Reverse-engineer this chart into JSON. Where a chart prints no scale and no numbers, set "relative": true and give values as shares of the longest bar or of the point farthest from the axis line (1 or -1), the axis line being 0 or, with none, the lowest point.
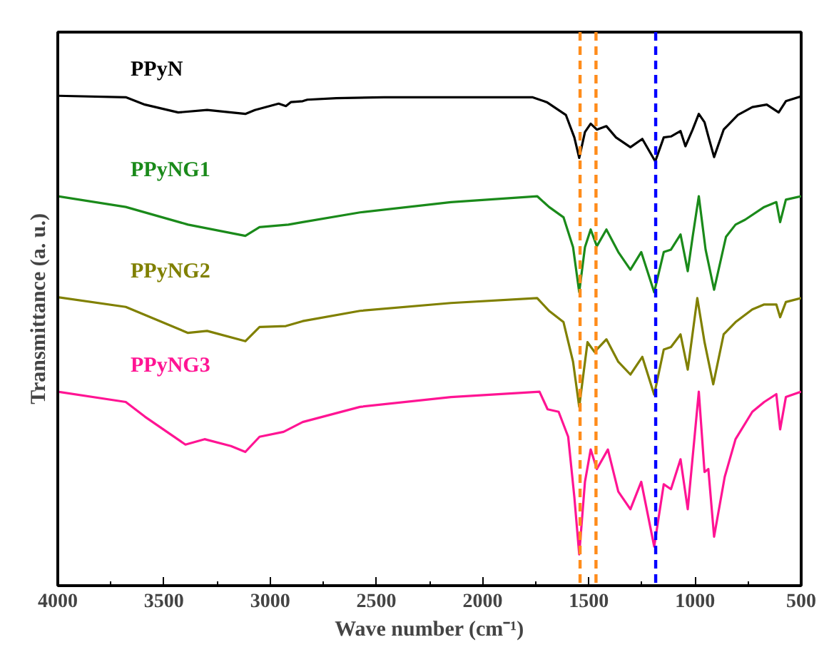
{
  "chart_data": {
    "type": "line",
    "relative": true,
    "xlabel": "Wave number (cm⁻¹)",
    "ylabel": "Transmittance (a. u.)",
    "xlim": [
      4000,
      500
    ],
    "xticks": [
      4000,
      3500,
      3000,
      2500,
      2000,
      1500,
      1000,
      500
    ],
    "tick_labels": "x",
    "grid": false,
    "series": [
      {
        "name": "PPyN",
        "color": "#000000",
        "x": [
          4000,
          3680,
          3590,
          3433,
          3297,
          3117,
          3072,
          2960,
          2926,
          2903,
          2847,
          2825,
          2689,
          2464,
          2149,
          1766,
          1698,
          1608,
          1568,
          1545,
          1518,
          1491,
          1462,
          1417,
          1372,
          1304,
          1248,
          1187,
          1147,
          1113,
          1068,
          1045,
          1011,
          982,
          955,
          937,
          910,
          865,
          798,
          730,
          662,
          606,
          572,
          500
        ],
        "values": [
          1.0,
          0.997,
          0.982,
          0.966,
          0.971,
          0.963,
          0.971,
          0.984,
          0.979,
          0.987,
          0.989,
          0.992,
          0.995,
          0.997,
          0.997,
          0.997,
          0.987,
          0.961,
          0.915,
          0.873,
          0.926,
          0.943,
          0.931,
          0.938,
          0.915,
          0.895,
          0.912,
          0.866,
          0.915,
          0.917,
          0.928,
          0.897,
          0.931,
          0.963,
          0.946,
          0.917,
          0.875,
          0.931,
          0.961,
          0.977,
          0.982,
          0.966,
          0.989,
          0.999
        ]
      },
      {
        "name": "PPyNG1",
        "color": "#1a8a1a",
        "x": [
          4000,
          3680,
          3387,
          3117,
          3050,
          2914,
          2847,
          2577,
          2149,
          1743,
          1687,
          1619,
          1574,
          1545,
          1518,
          1491,
          1462,
          1417,
          1361,
          1304,
          1253,
          1192,
          1147,
          1113,
          1068,
          1034,
          1011,
          982,
          950,
          910,
          854,
          809,
          764,
          674,
          617,
          599,
          572,
          500
        ],
        "values": [
          0.795,
          0.773,
          0.737,
          0.714,
          0.732,
          0.737,
          0.742,
          0.762,
          0.783,
          0.795,
          0.773,
          0.752,
          0.691,
          0.599,
          0.691,
          0.727,
          0.693,
          0.727,
          0.681,
          0.645,
          0.681,
          0.599,
          0.681,
          0.686,
          0.717,
          0.642,
          0.712,
          0.795,
          0.686,
          0.604,
          0.712,
          0.737,
          0.747,
          0.773,
          0.783,
          0.742,
          0.788,
          0.795
        ]
      },
      {
        "name": "PPyNG2",
        "color": "#808000",
        "x": [
          4000,
          3680,
          3387,
          3297,
          3117,
          3050,
          2926,
          2847,
          2577,
          2149,
          1743,
          1687,
          1619,
          1574,
          1545,
          1506,
          1473,
          1417,
          1361,
          1304,
          1248,
          1192,
          1147,
          1113,
          1068,
          1034,
          989,
          955,
          914,
          865,
          809,
          730,
          674,
          617,
          599,
          572,
          500
        ],
        "values": [
          0.589,
          0.569,
          0.516,
          0.52,
          0.499,
          0.528,
          0.53,
          0.54,
          0.561,
          0.577,
          0.587,
          0.561,
          0.538,
          0.457,
          0.365,
          0.497,
          0.477,
          0.503,
          0.457,
          0.431,
          0.467,
          0.39,
          0.482,
          0.487,
          0.513,
          0.441,
          0.587,
          0.497,
          0.411,
          0.513,
          0.538,
          0.564,
          0.574,
          0.574,
          0.548,
          0.579,
          0.587
        ]
      },
      {
        "name": "PPyNG3",
        "color": "#ff1493",
        "x": [
          4000,
          3680,
          3590,
          3399,
          3309,
          3185,
          3117,
          3050,
          2937,
          2847,
          2577,
          2149,
          1732,
          1694,
          1642,
          1597,
          1568,
          1545,
          1518,
          1491,
          1462,
          1410,
          1361,
          1304,
          1253,
          1192,
          1147,
          1113,
          1068,
          1034,
          982,
          955,
          937,
          910,
          860,
          809,
          730,
          674,
          617,
          599,
          572,
          500
        ],
        "values": [
          0.396,
          0.375,
          0.345,
          0.288,
          0.299,
          0.285,
          0.273,
          0.304,
          0.314,
          0.334,
          0.365,
          0.385,
          0.396,
          0.36,
          0.355,
          0.304,
          0.181,
          0.064,
          0.212,
          0.278,
          0.238,
          0.278,
          0.192,
          0.156,
          0.212,
          0.08,
          0.207,
          0.197,
          0.258,
          0.156,
          0.396,
          0.232,
          0.238,
          0.1,
          0.222,
          0.299,
          0.355,
          0.375,
          0.391,
          0.319,
          0.385,
          0.396
        ]
      }
    ],
    "ref_lines": [
      {
        "axis": "x",
        "value": 1541,
        "color": "#ff8c1a",
        "line_style": "dashed"
      },
      {
        "axis": "x",
        "value": 1466,
        "color": "#ff8c1a",
        "line_style": "dashed"
      },
      {
        "axis": "x",
        "value": 1185,
        "color": "#0000ff",
        "line_style": "dashed"
      }
    ]
  }
}
